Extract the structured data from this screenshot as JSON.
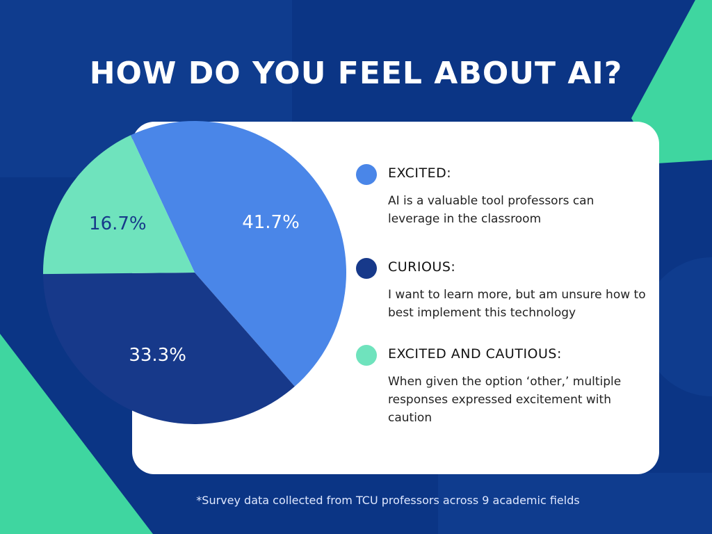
{
  "chart_data": {
    "type": "pie",
    "title": "HOW DO YOU FEEL ABOUT AI?",
    "categories": [
      "EXCITED:",
      "CURIOUS:",
      "EXCITED AND CAUTIOUS:"
    ],
    "descriptions": [
      "AI is a valuable tool professors can leverage in the classroom",
      "I want to learn more, but am unsure how to best implement this technology",
      "When given the option ‘other,’ multiple responses expressed excitement with caution"
    ],
    "values": [
      41.7,
      33.3,
      16.7
    ],
    "value_labels": [
      "41.7%",
      "33.3%",
      "16.7%"
    ],
    "colors": [
      "#4a86e8",
      "#17398a",
      "#6fe3bd"
    ],
    "footnote": "*Survey data collected from TCU professors across 9 academic fields"
  }
}
